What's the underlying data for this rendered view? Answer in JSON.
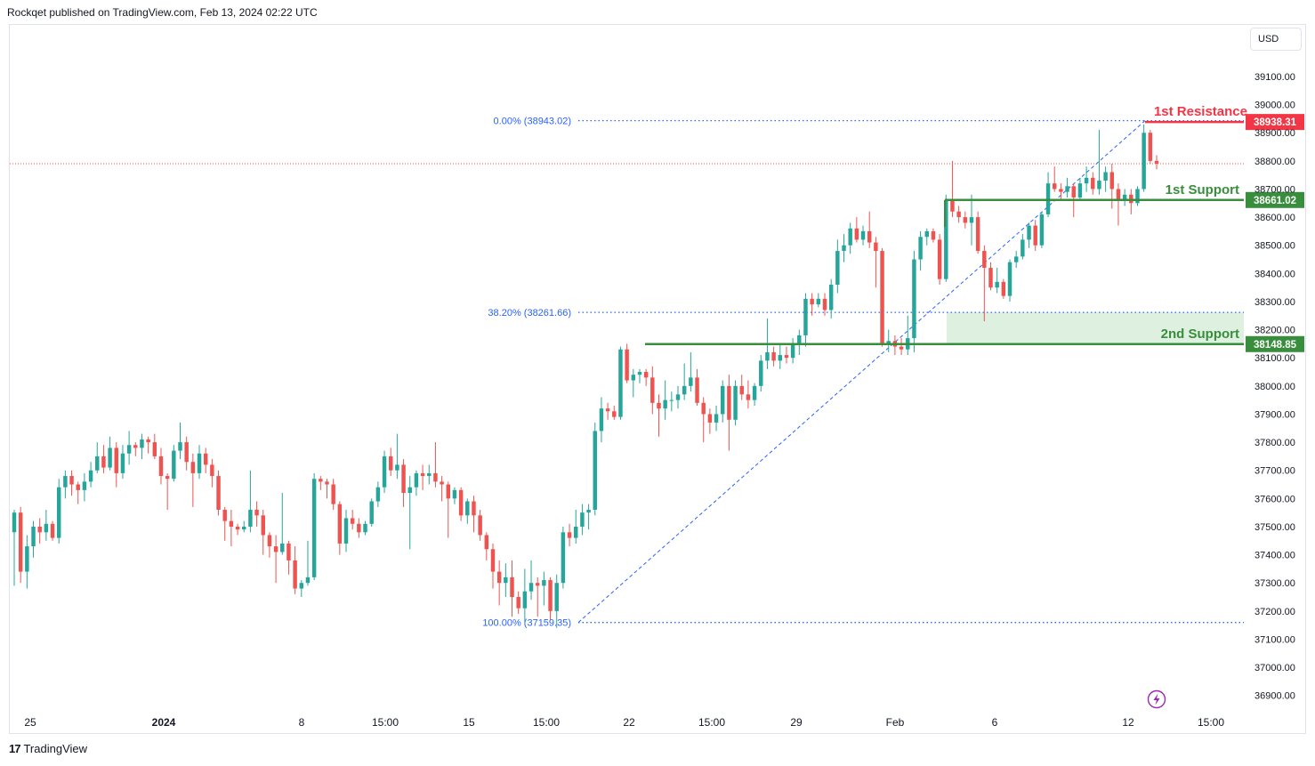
{
  "header": {
    "text": "Rockqet published on TradingView.com, Feb 13, 2024 02:22 UTC"
  },
  "footer": {
    "logo": "17",
    "brand": "TradingView"
  },
  "currency": "USD",
  "colors": {
    "up": "#26a69a",
    "down": "#ef5350",
    "fib": "#2962ff",
    "support": "#388e3c",
    "resistance": "#f23645",
    "zone": "#c8e6c9",
    "last_price_line": "#ef5350",
    "axis_text": "#131722"
  },
  "alert_icon": "lightning-alert-icon",
  "chart_data": {
    "type": "candlestick",
    "instrument_currency": "USD",
    "y_ticks": [
      36900,
      37000,
      37100,
      37200,
      37300,
      37400,
      37500,
      37600,
      37700,
      37800,
      37900,
      38000,
      38100,
      38200,
      38300,
      38400,
      38500,
      38600,
      38700,
      38800,
      38900,
      39000,
      39100
    ],
    "y_tick_labels": [
      "36900.00",
      "37000.00",
      "37100.00",
      "37200.00",
      "37300.00",
      "37400.00",
      "37500.00",
      "37600.00",
      "37700.00",
      "37800.00",
      "37900.00",
      "38000.00",
      "38100.00",
      "38200.00",
      "38300.00",
      "38400.00",
      "38500.00",
      "38600.00",
      "38700.00",
      "38800.00",
      "38900.00",
      "39000.00",
      "39100.00"
    ],
    "ylim": [
      36840,
      39260
    ],
    "x_ticks": [
      {
        "label": "25",
        "bold": false
      },
      {
        "label": "2024",
        "bold": true
      },
      {
        "label": "8",
        "bold": false
      },
      {
        "label": "15:00",
        "bold": false
      },
      {
        "label": "15",
        "bold": false
      },
      {
        "label": "15:00",
        "bold": false
      },
      {
        "label": "22",
        "bold": false
      },
      {
        "label": "15:00",
        "bold": false
      },
      {
        "label": "29",
        "bold": false
      },
      {
        "label": "Feb",
        "bold": false
      },
      {
        "label": "6",
        "bold": false
      },
      {
        "label": "12",
        "bold": false
      },
      {
        "label": "15:00",
        "bold": false
      }
    ],
    "levels": {
      "resistance_1": {
        "label": "1st Resistance",
        "price": 38938.31,
        "price_label": "38938.31"
      },
      "support_1": {
        "label": "1st Support",
        "price": 38661.02,
        "price_label": "38661.02"
      },
      "support_2": {
        "label": "2nd Support",
        "price": 38148.85,
        "price_label": "38148.85"
      },
      "zone_top": 38261.66
    },
    "fibonacci": [
      {
        "label": "0.00% (38943.02)",
        "price": 38943.02
      },
      {
        "label": "38.20% (38261.66)",
        "price": 38261.66
      },
      {
        "label": "100.00% (37159.35)",
        "price": 37159.35
      }
    ],
    "last_price": 38790,
    "candles": [
      [
        37480,
        37560,
        37290,
        37550
      ],
      [
        37550,
        37570,
        37300,
        37340
      ],
      [
        37340,
        37470,
        37280,
        37430
      ],
      [
        37430,
        37520,
        37390,
        37500
      ],
      [
        37500,
        37530,
        37440,
        37480
      ],
      [
        37480,
        37560,
        37450,
        37510
      ],
      [
        37510,
        37520,
        37450,
        37460
      ],
      [
        37460,
        37670,
        37440,
        37640
      ],
      [
        37640,
        37700,
        37600,
        37680
      ],
      [
        37680,
        37700,
        37610,
        37650
      ],
      [
        37650,
        37660,
        37580,
        37630
      ],
      [
        37630,
        37690,
        37590,
        37660
      ],
      [
        37660,
        37730,
        37640,
        37700
      ],
      [
        37700,
        37800,
        37690,
        37750
      ],
      [
        37750,
        37790,
        37690,
        37710
      ],
      [
        37710,
        37820,
        37700,
        37780
      ],
      [
        37780,
        37800,
        37640,
        37690
      ],
      [
        37690,
        37790,
        37670,
        37760
      ],
      [
        37760,
        37840,
        37720,
        37790
      ],
      [
        37790,
        37800,
        37750,
        37780
      ],
      [
        37780,
        37830,
        37740,
        37810
      ],
      [
        37810,
        37820,
        37760,
        37800
      ],
      [
        37800,
        37830,
        37740,
        37750
      ],
      [
        37750,
        37780,
        37650,
        37680
      ],
      [
        37680,
        37690,
        37560,
        37670
      ],
      [
        37670,
        37790,
        37660,
        37770
      ],
      [
        37770,
        37870,
        37740,
        37800
      ],
      [
        37800,
        37820,
        37700,
        37730
      ],
      [
        37730,
        37760,
        37570,
        37690
      ],
      [
        37690,
        37790,
        37670,
        37760
      ],
      [
        37760,
        37780,
        37690,
        37720
      ],
      [
        37720,
        37740,
        37640,
        37680
      ],
      [
        37680,
        37700,
        37540,
        37560
      ],
      [
        37560,
        37570,
        37450,
        37520
      ],
      [
        37520,
        37560,
        37430,
        37500
      ],
      [
        37500,
        37510,
        37470,
        37490
      ],
      [
        37490,
        37520,
        37480,
        37500
      ],
      [
        37500,
        37700,
        37480,
        37560
      ],
      [
        37560,
        37590,
        37500,
        37540
      ],
      [
        37540,
        37560,
        37400,
        37470
      ],
      [
        37470,
        37480,
        37390,
        37430
      ],
      [
        37430,
        37470,
        37300,
        37410
      ],
      [
        37410,
        37620,
        37400,
        37440
      ],
      [
        37440,
        37450,
        37330,
        37380
      ],
      [
        37380,
        37430,
        37260,
        37280
      ],
      [
        37280,
        37310,
        37250,
        37300
      ],
      [
        37300,
        37450,
        37290,
        37320
      ],
      [
        37320,
        37690,
        37310,
        37670
      ],
      [
        37670,
        37680,
        37630,
        37660
      ],
      [
        37660,
        37670,
        37600,
        37650
      ],
      [
        37650,
        37670,
        37560,
        37580
      ],
      [
        37580,
        37590,
        37400,
        37440
      ],
      [
        37440,
        37560,
        37410,
        37530
      ],
      [
        37530,
        37560,
        37490,
        37510
      ],
      [
        37510,
        37530,
        37460,
        37480
      ],
      [
        37480,
        37520,
        37470,
        37510
      ],
      [
        37510,
        37600,
        37500,
        37590
      ],
      [
        37590,
        37660,
        37570,
        37640
      ],
      [
        37640,
        37770,
        37620,
        37750
      ],
      [
        37750,
        37780,
        37680,
        37700
      ],
      [
        37700,
        37830,
        37670,
        37720
      ],
      [
        37720,
        37740,
        37570,
        37620
      ],
      [
        37620,
        37680,
        37420,
        37640
      ],
      [
        37640,
        37700,
        37610,
        37690
      ],
      [
        37690,
        37720,
        37630,
        37680
      ],
      [
        37680,
        37720,
        37650,
        37690
      ],
      [
        37690,
        37800,
        37640,
        37660
      ],
      [
        37660,
        37680,
        37590,
        37650
      ],
      [
        37650,
        37660,
        37460,
        37600
      ],
      [
        37600,
        37640,
        37580,
        37630
      ],
      [
        37630,
        37640,
        37520,
        37540
      ],
      [
        37540,
        37600,
        37510,
        37590
      ],
      [
        37590,
        37610,
        37480,
        37540
      ],
      [
        37540,
        37560,
        37450,
        37470
      ],
      [
        37470,
        37480,
        37380,
        37420
      ],
      [
        37420,
        37440,
        37280,
        37340
      ],
      [
        37340,
        37380,
        37220,
        37300
      ],
      [
        37300,
        37370,
        37250,
        37320
      ],
      [
        37320,
        37380,
        37180,
        37250
      ],
      [
        37250,
        37270,
        37190,
        37210
      ],
      [
        37210,
        37350,
        37160,
        37270
      ],
      [
        37270,
        37380,
        37240,
        37300
      ],
      [
        37300,
        37320,
        37180,
        37290
      ],
      [
        37290,
        37340,
        37220,
        37310
      ],
      [
        37310,
        37320,
        37170,
        37200
      ],
      [
        37200,
        37330,
        37140,
        37300
      ],
      [
        37300,
        37500,
        37280,
        37480
      ],
      [
        37480,
        37510,
        37430,
        37460
      ],
      [
        37460,
        37560,
        37440,
        37500
      ],
      [
        37500,
        37580,
        37470,
        37550
      ],
      [
        37550,
        37580,
        37490,
        37560
      ],
      [
        37560,
        37870,
        37540,
        37840
      ],
      [
        37840,
        37960,
        37800,
        37920
      ],
      [
        37920,
        37940,
        37880,
        37910
      ],
      [
        37910,
        37930,
        37880,
        37890
      ],
      [
        37890,
        38140,
        37880,
        38130
      ],
      [
        38130,
        38150,
        38010,
        38020
      ],
      [
        38020,
        38060,
        37960,
        38040
      ],
      [
        38040,
        38060,
        38010,
        38050
      ],
      [
        38050,
        38060,
        38000,
        38030
      ],
      [
        38030,
        38070,
        37900,
        37940
      ],
      [
        37940,
        37970,
        37820,
        37920
      ],
      [
        37920,
        38020,
        37880,
        37950
      ],
      [
        37950,
        37980,
        37910,
        37950
      ],
      [
        37950,
        38000,
        37920,
        37970
      ],
      [
        37970,
        38080,
        37950,
        38000
      ],
      [
        38000,
        38120,
        37980,
        38030
      ],
      [
        38030,
        38060,
        37930,
        37940
      ],
      [
        37940,
        37960,
        37800,
        37900
      ],
      [
        37900,
        37920,
        37830,
        37870
      ],
      [
        37870,
        37930,
        37840,
        37900
      ],
      [
        37900,
        38020,
        37870,
        38000
      ],
      [
        38000,
        38040,
        37770,
        37880
      ],
      [
        37880,
        38020,
        37860,
        38000
      ],
      [
        38000,
        38040,
        37950,
        37970
      ],
      [
        37970,
        38020,
        37920,
        37950
      ],
      [
        37950,
        38010,
        37930,
        38000
      ],
      [
        38000,
        38110,
        37980,
        38090
      ],
      [
        38090,
        38240,
        38060,
        38120
      ],
      [
        38120,
        38140,
        38070,
        38090
      ],
      [
        38090,
        38150,
        38060,
        38110
      ],
      [
        38110,
        38140,
        38080,
        38100
      ],
      [
        38100,
        38170,
        38080,
        38150
      ],
      [
        38150,
        38200,
        38110,
        38180
      ],
      [
        38180,
        38330,
        38140,
        38310
      ],
      [
        38310,
        38330,
        38250,
        38290
      ],
      [
        38290,
        38330,
        38280,
        38310
      ],
      [
        38310,
        38330,
        38250,
        38270
      ],
      [
        38270,
        38380,
        38240,
        38360
      ],
      [
        38360,
        38520,
        38330,
        38480
      ],
      [
        38480,
        38540,
        38440,
        38500
      ],
      [
        38500,
        38580,
        38470,
        38560
      ],
      [
        38560,
        38600,
        38510,
        38520
      ],
      [
        38520,
        38570,
        38500,
        38550
      ],
      [
        38550,
        38620,
        38490,
        38510
      ],
      [
        38510,
        38530,
        38350,
        38480
      ],
      [
        38480,
        38490,
        38140,
        38150
      ],
      [
        38150,
        38200,
        38120,
        38160
      ],
      [
        38160,
        38180,
        38110,
        38140
      ],
      [
        38140,
        38170,
        38110,
        38130
      ],
      [
        38130,
        38250,
        38110,
        38170
      ],
      [
        38170,
        38480,
        38120,
        38450
      ],
      [
        38450,
        38550,
        38410,
        38530
      ],
      [
        38530,
        38560,
        38500,
        38550
      ],
      [
        38550,
        38560,
        38510,
        38520
      ],
      [
        38520,
        38540,
        38360,
        38380
      ],
      [
        38380,
        38680,
        38370,
        38660
      ],
      [
        38660,
        38800,
        38600,
        38620
      ],
      [
        38620,
        38640,
        38580,
        38600
      ],
      [
        38600,
        38620,
        38560,
        38580
      ],
      [
        38580,
        38680,
        38500,
        38600
      ],
      [
        38600,
        38620,
        38470,
        38480
      ],
      [
        38480,
        38500,
        38230,
        38420
      ],
      [
        38420,
        38440,
        38340,
        38350
      ],
      [
        38350,
        38420,
        38330,
        38370
      ],
      [
        38370,
        38380,
        38310,
        38320
      ],
      [
        38320,
        38450,
        38300,
        38440
      ],
      [
        38440,
        38480,
        38420,
        38460
      ],
      [
        38460,
        38540,
        38450,
        38520
      ],
      [
        38520,
        38580,
        38490,
        38570
      ],
      [
        38570,
        38590,
        38480,
        38500
      ],
      [
        38500,
        38620,
        38490,
        38610
      ],
      [
        38610,
        38760,
        38600,
        38720
      ],
      [
        38720,
        38780,
        38690,
        38700
      ],
      [
        38700,
        38720,
        38660,
        38690
      ],
      [
        38690,
        38740,
        38670,
        38710
      ],
      [
        38710,
        38720,
        38600,
        38670
      ],
      [
        38670,
        38740,
        38660,
        38720
      ],
      [
        38720,
        38780,
        38690,
        38740
      ],
      [
        38740,
        38760,
        38680,
        38700
      ],
      [
        38700,
        38910,
        38680,
        38730
      ],
      [
        38730,
        38780,
        38690,
        38760
      ],
      [
        38760,
        38790,
        38630,
        38700
      ],
      [
        38700,
        38720,
        38570,
        38660
      ],
      [
        38660,
        38700,
        38640,
        38680
      ],
      [
        38680,
        38700,
        38610,
        38650
      ],
      [
        38650,
        38710,
        38640,
        38700
      ],
      [
        38700,
        38930,
        38690,
        38900
      ],
      [
        38900,
        38910,
        38790,
        38800
      ],
      [
        38800,
        38820,
        38770,
        38790
      ]
    ]
  }
}
